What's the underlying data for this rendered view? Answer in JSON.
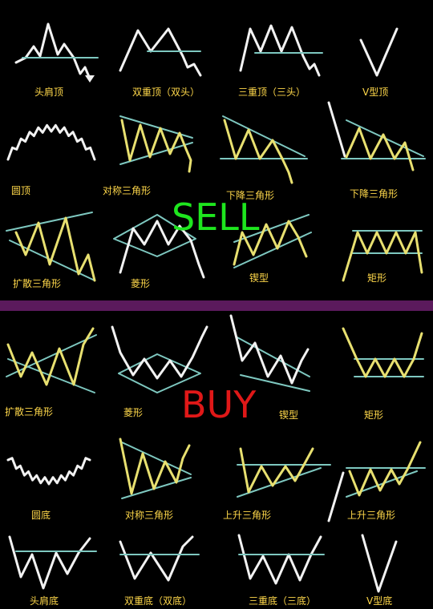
{
  "colors": {
    "background": "#000000",
    "band": "#5b1a5c",
    "sell": "#1ee61e",
    "buy": "#e01818",
    "label": "#ffd84a",
    "white_line": "#f2f2f2",
    "trend_line": "#7ec8c0",
    "zigzag": "#e8e070"
  },
  "sell_label": "SELL",
  "buy_label": "BUY",
  "sell_patterns": [
    "头肩顶",
    "双重顶（双头）",
    "三重顶（三头）",
    "V型顶",
    "圆顶",
    "对称三角形",
    "下降三角形",
    "下降三角形",
    "扩散三角形",
    "菱形",
    "锲型",
    "矩形"
  ],
  "buy_patterns": [
    "扩散三角形",
    "菱形",
    "锲型",
    "矩形",
    "圆底",
    "对称三角形",
    "上升三角形",
    "上升三角形",
    "头肩底",
    "双重底（双底）",
    "三重底（三底）",
    "V型底"
  ]
}
